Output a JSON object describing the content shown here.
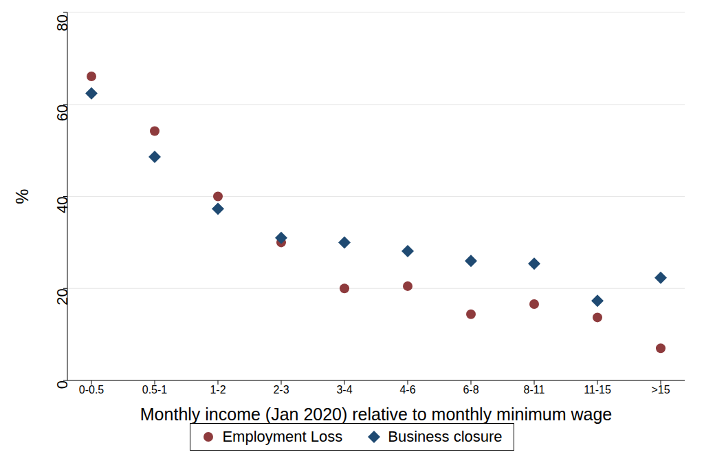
{
  "chart_data": {
    "type": "scatter",
    "x_label": "Monthly income (Jan 2020) relative to monthly minimum wage",
    "y_label": "%",
    "categories": [
      "0-0.5",
      "0.5-1",
      "1-2",
      "2-3",
      "3-4",
      "4-6",
      "6-8",
      "8-11",
      "11-15",
      ">15"
    ],
    "series": [
      {
        "name": "Employment Loss",
        "color": "#8e3b3d",
        "marker": "circle",
        "values": [
          66.1,
          54.2,
          40,
          30,
          20,
          20.5,
          14.4,
          16.6,
          13.7,
          7
        ]
      },
      {
        "name": "Business closure",
        "color": "#1f4a72",
        "marker": "diamond",
        "values": [
          62.4,
          48.6,
          37.3,
          31,
          30,
          28.1,
          26,
          25.4,
          17.3,
          22.3
        ]
      }
    ],
    "ylim": [
      0,
      80
    ],
    "yticks": [
      0,
      20,
      40,
      60,
      80
    ],
    "grid": true,
    "legend": "bottom"
  }
}
